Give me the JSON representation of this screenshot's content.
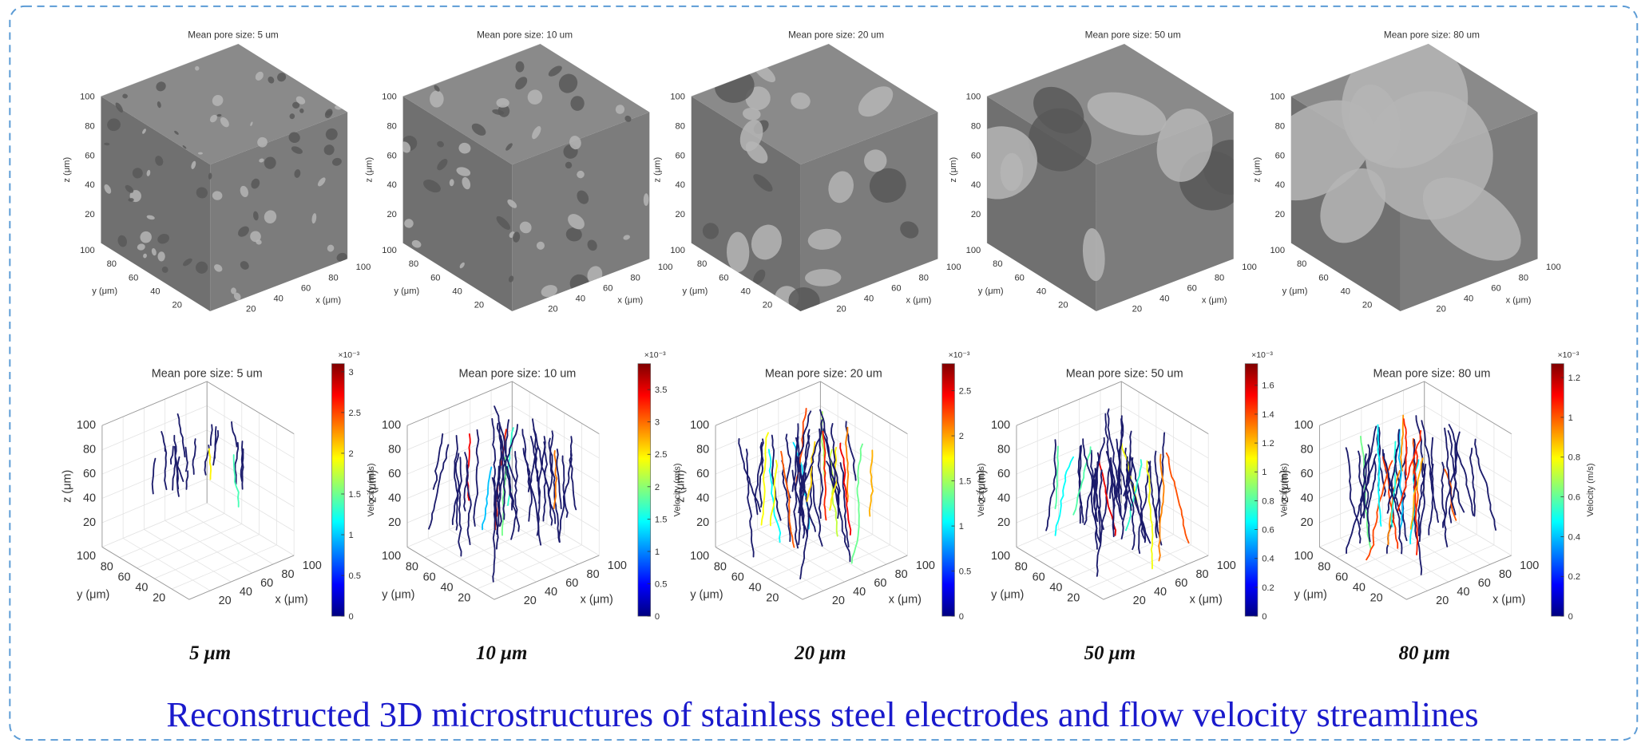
{
  "figure": {
    "top_panels": [
      {
        "title": "Mean pore size: 5 um"
      },
      {
        "title": "Mean pore size: 10 um"
      },
      {
        "title": "Mean pore size: 20 um"
      },
      {
        "title": "Mean pore size: 50 um"
      },
      {
        "title": "Mean pore size: 80 um"
      }
    ],
    "bottom_panels": [
      {
        "title": "Mean pore size: 5 um",
        "colorbar": {
          "exponent": "×10⁻³",
          "label": "Velocity (m/s)",
          "clim": [
            0,
            3.1
          ],
          "ticks": [
            0,
            0.5,
            1,
            1.5,
            2,
            2.5,
            3
          ]
        }
      },
      {
        "title": "Mean pore size: 10 um",
        "colorbar": {
          "exponent": "×10⁻³",
          "label": "Velocity (m/s)",
          "clim": [
            0,
            3.9
          ],
          "ticks": [
            0,
            0.5,
            1,
            1.5,
            2,
            2.5,
            3,
            3.5
          ]
        }
      },
      {
        "title": "Mean pore size: 20 um",
        "colorbar": {
          "exponent": "×10⁻³",
          "label": "Velocity (m/s)",
          "clim": [
            0,
            2.8
          ],
          "ticks": [
            0,
            0.5,
            1,
            1.5,
            2,
            2.5
          ]
        }
      },
      {
        "title": "Mean pore size: 50 um",
        "colorbar": {
          "exponent": "×10⁻³",
          "label": "Velocity (m/s)",
          "clim": [
            0,
            1.75
          ],
          "ticks": [
            0,
            0.2,
            0.4,
            0.6,
            0.8,
            1,
            1.2,
            1.4,
            1.6
          ]
        }
      },
      {
        "title": "Mean pore size: 80 um",
        "colorbar": {
          "exponent": "×10⁻³",
          "label": "Velocity (m/s)",
          "clim": [
            0,
            1.27
          ],
          "ticks": [
            0,
            0.2,
            0.4,
            0.6,
            0.8,
            1,
            1.2
          ]
        }
      }
    ],
    "axes": {
      "x_label": "x (μm)",
      "y_label": "y (μm)",
      "z_label": "z (μm)",
      "x_ticks": [
        20,
        40,
        60,
        80,
        100
      ],
      "y_ticks": [
        20,
        40,
        60,
        80,
        100
      ],
      "z_ticks": [
        20,
        40,
        60,
        80,
        100
      ]
    },
    "column_labels": [
      "5 μm",
      "10 μm",
      "20 μm",
      "50 μm",
      "80 μm"
    ],
    "caption": "Reconstructed 3D microstructures of stainless steel electrodes and flow velocity streamlines"
  }
}
